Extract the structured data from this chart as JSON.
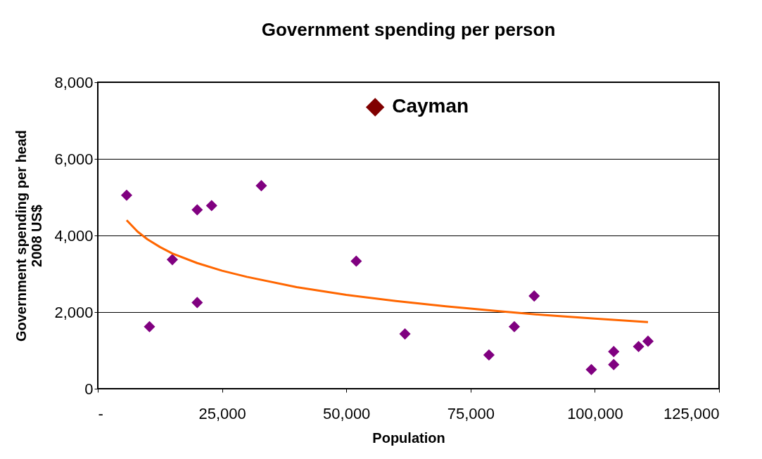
{
  "chart_data": {
    "type": "scatter",
    "title": "Government spending per person",
    "xlabel": "Population",
    "ylabel": "Government spending per head\n2008 US$",
    "xlim": [
      0,
      125000
    ],
    "xticks": [
      {
        "value": 0,
        "label": "-"
      },
      {
        "value": 25000,
        "label": "25,000"
      },
      {
        "value": 50000,
        "label": "50,000"
      },
      {
        "value": 75000,
        "label": "75,000"
      },
      {
        "value": 100000,
        "label": "100,000"
      },
      {
        "value": 125000,
        "label": "125,000"
      }
    ],
    "ylim": [
      0,
      8000
    ],
    "yticks": [
      {
        "value": 0,
        "label": "0"
      },
      {
        "value": 2000,
        "label": "2,000"
      },
      {
        "value": 4000,
        "label": "4,000"
      },
      {
        "value": 6000,
        "label": "6,000"
      },
      {
        "value": 8000,
        "label": "8,000"
      }
    ],
    "grid": "y",
    "legend": false,
    "series": [
      {
        "type": "scatter",
        "marker": "diamond",
        "color": "#800080",
        "x": [
          5800,
          10400,
          15000,
          20000,
          20000,
          22900,
          32900,
          52000,
          61800,
          78700,
          83800,
          87800,
          99300,
          103800,
          103800,
          108800,
          110700
        ],
        "values": [
          5050,
          1620,
          3370,
          4670,
          2250,
          4780,
          5300,
          3330,
          1430,
          880,
          1620,
          2420,
          500,
          970,
          630,
          1100,
          1240
        ]
      },
      {
        "type": "scatter",
        "marker": "diamond",
        "name": "Cayman",
        "color": "#800000",
        "x": [
          55800
        ],
        "values": [
          7350
        ]
      },
      {
        "type": "line",
        "marker": "none",
        "color": "#ff6600",
        "x": [
          5800,
          8000,
          10000,
          12500,
          15000,
          20000,
          25000,
          30000,
          40000,
          50000,
          60000,
          70000,
          80000,
          90000,
          100000,
          110700
        ],
        "values": [
          4400,
          4100,
          3900,
          3700,
          3530,
          3280,
          3080,
          2920,
          2650,
          2450,
          2290,
          2150,
          2030,
          1920,
          1830,
          1740
        ]
      }
    ]
  }
}
